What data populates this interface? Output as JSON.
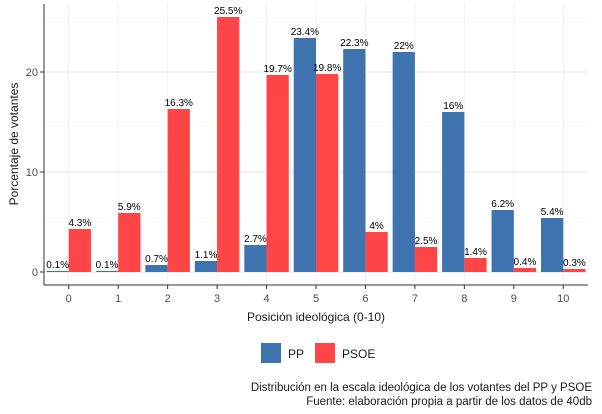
{
  "chart_data": {
    "type": "bar",
    "categories": [
      "0",
      "1",
      "2",
      "3",
      "4",
      "5",
      "6",
      "7",
      "8",
      "9",
      "10"
    ],
    "series": [
      {
        "name": "PP",
        "color": "#3F73AF",
        "values": [
          0.1,
          0.1,
          0.7,
          1.1,
          2.7,
          23.4,
          22.3,
          22.0,
          16.0,
          6.2,
          5.4
        ],
        "labels": [
          "0.1%",
          "0.1%",
          "0.7%",
          "1.1%",
          "2.7%",
          "23.4%",
          "22.3%",
          "22%",
          "16%",
          "6.2%",
          "5.4%"
        ]
      },
      {
        "name": "PSOE",
        "color": "#FF4545",
        "values": [
          4.3,
          5.9,
          16.3,
          25.5,
          19.7,
          19.8,
          4.0,
          2.5,
          1.4,
          0.4,
          0.3
        ],
        "labels": [
          "4.3%",
          "5.9%",
          "16.3%",
          "25.5%",
          "19.7%",
          "19.8%",
          "4%",
          "2.5%",
          "1.4%",
          "0.4%",
          "0.3%"
        ]
      }
    ],
    "xlabel": "Posición ideológica (0-10)",
    "ylabel": "Porcentaje de votantes",
    "ylim": [
      -1.3,
      26.8
    ],
    "yticks": [
      0,
      10,
      20
    ],
    "grid": true,
    "legend_position": "bottom",
    "caption": [
      "Distribución en la escala ideológica de los votantes del PP y PSOE",
      "Fuente: elaboración propia a partir de los datos de 40db"
    ]
  }
}
